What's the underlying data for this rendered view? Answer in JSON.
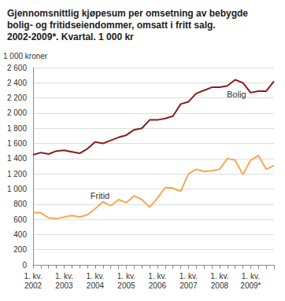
{
  "chart_data": {
    "type": "line",
    "title": "Gjennomsnittlig kjøpesum per omsetning av bebygde\nbolig- og fritidseiendommer, omsatt i fritt salg.\n2002-2009*. Kvartal. 1 000 kr",
    "y_label": "1 000 kroner",
    "categories": [
      "1. kv.\n2002",
      null,
      null,
      null,
      "1. kv.\n2003",
      null,
      null,
      null,
      "1. kv.\n2004",
      null,
      null,
      null,
      "1. kv.\n2005",
      null,
      null,
      null,
      "1. kv.\n2006",
      null,
      null,
      null,
      "1. kv.\n2007",
      null,
      null,
      null,
      "1. kv.\n2008",
      null,
      null,
      null,
      "1. kv.\n2009*",
      null,
      null,
      null
    ],
    "series": [
      {
        "name": "Bolig",
        "color": "#8b1a1f",
        "values": [
          1450,
          1480,
          1460,
          1500,
          1510,
          1490,
          1470,
          1530,
          1620,
          1600,
          1640,
          1680,
          1710,
          1780,
          1800,
          1910,
          1910,
          1930,
          1960,
          2120,
          2150,
          2260,
          2300,
          2340,
          2340,
          2360,
          2440,
          2400,
          2270,
          2290,
          2290,
          2420
        ]
      },
      {
        "name": "Fritid",
        "color": "#f5a94b",
        "values": [
          690,
          685,
          620,
          610,
          630,
          650,
          630,
          660,
          740,
          830,
          780,
          860,
          820,
          910,
          860,
          760,
          880,
          1020,
          1010,
          970,
          1200,
          1260,
          1230,
          1240,
          1260,
          1400,
          1380,
          1190,
          1380,
          1440,
          1260,
          1310
        ]
      }
    ],
    "ylim": [
      0,
      2600
    ],
    "yticks": [
      0,
      200,
      400,
      600,
      800,
      {
        "value": 1000,
        "label": "1 000"
      },
      {
        "value": 1200,
        "label": "1 200"
      },
      {
        "value": 1400,
        "label": "1 400"
      },
      {
        "value": 1600,
        "label": "1 600"
      },
      {
        "value": 1800,
        "label": "1 800"
      },
      {
        "value": 2000,
        "label": "2 000"
      },
      {
        "value": 2200,
        "label": "2 200"
      },
      {
        "value": 2400,
        "label": "2 400"
      },
      {
        "value": 2600,
        "label": "2 600"
      }
    ],
    "grid": true
  }
}
